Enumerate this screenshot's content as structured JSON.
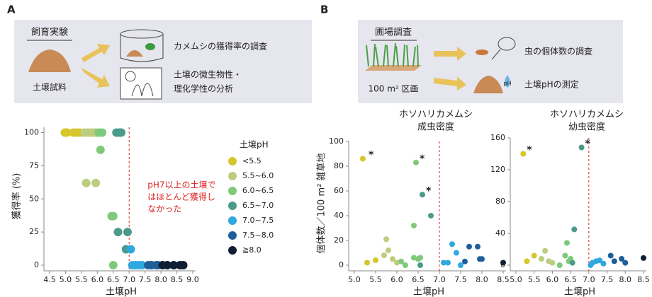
{
  "panel_a": {
    "label": "A",
    "title": "飼育実験",
    "sample": "土壌試料",
    "steps": [
      [
        "カメムシの獲得率の調査"
      ],
      [
        "土壌の微生物性・",
        "理化学性の分析"
      ]
    ]
  },
  "panel_b": {
    "label": "B",
    "title": "圃場調査",
    "plot": "100 m² 区画",
    "drop_label": "pH",
    "steps": [
      "虫の個体数の調査",
      "土壌pHの測定"
    ]
  },
  "chart_data": [
    {
      "type": "scatter",
      "xlabel": "土壌pH",
      "ylabel": "獲得率 (%)",
      "xlim": [
        4.5,
        9.0
      ],
      "xticks": [
        4.5,
        {
          "value": 5,
          "label": "5.0"
        },
        5.5,
        {
          "value": 6,
          "label": "6.0"
        },
        6.5,
        {
          "value": 7,
          "label": "7.0"
        },
        7.5,
        {
          "value": 8,
          "label": "8.0"
        },
        8.5,
        {
          "value": 9,
          "label": "9.0"
        }
      ],
      "ylim": [
        0,
        104
      ],
      "yticks": [
        0,
        25,
        50,
        75,
        100
      ],
      "threshold": 7.0,
      "note": [
        "pH7以上の土壌で",
        "はほとんど獲得し",
        "なかった"
      ],
      "legend": "right",
      "legend_title": "土壌pH",
      "series": [
        {
          "name": "<5.5",
          "color": "#d6c62c",
          "x": [
            4.98,
            5.05,
            5.25,
            5.35,
            5.45
          ],
          "y": [
            100,
            100,
            100,
            100,
            100
          ]
        },
        {
          "name": "5.5~6.0",
          "color": "#bccd80",
          "x": [
            5.6,
            5.7,
            5.8,
            5.9,
            5.95,
            5.65,
            5.95
          ],
          "y": [
            100,
            100,
            100,
            100,
            100,
            62,
            62
          ]
        },
        {
          "name": "6.0~6.5",
          "color": "#7fc97a",
          "x": [
            6.05,
            6.15,
            6.1,
            6.45,
            6.5,
            6.5
          ],
          "y": [
            100,
            100,
            87,
            37,
            37,
            0
          ]
        },
        {
          "name": "6.5~7.0",
          "color": "#4b9a8a",
          "x": [
            6.6,
            6.7,
            6.75,
            6.65,
            6.95,
            6.9
          ],
          "y": [
            100,
            100,
            100,
            25,
            25,
            12
          ]
        },
        {
          "name": "7.0~7.5",
          "color": "#2ea8de",
          "x": [
            7.05,
            7.1,
            7.2,
            7.3,
            7.4
          ],
          "y": [
            12,
            0,
            0,
            0,
            0
          ]
        },
        {
          "name": "7.5~8.0",
          "color": "#1e5f9a",
          "x": [
            7.6,
            7.7,
            7.85,
            7.9
          ],
          "y": [
            0,
            0,
            0,
            0
          ]
        },
        {
          "name": "≧8.0",
          "color": "#101e33",
          "x": [
            8.05,
            8.2,
            8.4,
            8.6,
            8.7
          ],
          "y": [
            0,
            0,
            0,
            0,
            0
          ]
        }
      ]
    },
    {
      "type": "scatter",
      "title": [
        "ホソハリカメムシ",
        "成虫密度"
      ],
      "xlabel": "土壌pH",
      "ylabel": "個体数／100 m² 雑草地",
      "xlim": [
        5.0,
        8.5
      ],
      "xticks": [
        {
          "value": 5,
          "label": "5.0"
        },
        5.5,
        {
          "value": 6,
          "label": "6.0"
        },
        6.5,
        {
          "value": 7,
          "label": "7.0"
        },
        7.5,
        {
          "value": 8,
          "label": "8.0"
        },
        8.5
      ],
      "ylim": [
        0,
        100
      ],
      "yticks": [
        0,
        20,
        40,
        60,
        80,
        100
      ],
      "threshold": 7.0,
      "annotations": [
        {
          "x": 5.25,
          "y": 86,
          "text": "*"
        },
        {
          "x": 6.45,
          "y": 83,
          "text": "*"
        },
        {
          "x": 6.6,
          "y": 57,
          "text": "*"
        }
      ],
      "series": [
        {
          "color": "#d6c62c",
          "x": [
            5.2,
            5.3,
            5.5
          ],
          "y": [
            86,
            2,
            4
          ]
        },
        {
          "color": "#bccd80",
          "x": [
            5.7,
            5.8,
            5.75,
            5.9,
            6.0
          ],
          "y": [
            8,
            12,
            21,
            5,
            2
          ]
        },
        {
          "color": "#7fc97a",
          "x": [
            6.1,
            6.2,
            6.4,
            6.45,
            6.4,
            6.5,
            6.55
          ],
          "y": [
            3,
            0,
            32,
            83,
            6,
            5,
            6
          ]
        },
        {
          "color": "#4b9a8a",
          "x": [
            6.6,
            6.8,
            6.55
          ],
          "y": [
            57,
            40,
            0
          ]
        },
        {
          "color": "#2ea8de",
          "x": [
            7.1,
            7.2,
            7.3,
            7.4,
            7.5
          ],
          "y": [
            2,
            2,
            17,
            10,
            0
          ]
        },
        {
          "color": "#1e5f9a",
          "x": [
            7.7,
            7.9,
            7.6,
            8.0,
            7.95
          ],
          "y": [
            15,
            15,
            3,
            5,
            5
          ]
        },
        {
          "color": "#101e33",
          "x": [
            8.5
          ],
          "y": [
            2
          ]
        }
      ]
    },
    {
      "type": "scatter",
      "title": [
        "ホソハリカメムシ",
        "幼虫密度"
      ],
      "xlabel": "土壌pH",
      "xlim": [
        5.0,
        8.5
      ],
      "xticks": [
        {
          "value": 5,
          "label": "5.0"
        },
        5.5,
        {
          "value": 6,
          "label": "6.0"
        },
        6.5,
        {
          "value": 7,
          "label": "7.0"
        },
        7.5,
        {
          "value": 8,
          "label": "8.0"
        },
        8.5
      ],
      "ylim": [
        0,
        160
      ],
      "yticks": [
        0,
        40,
        80,
        120,
        160
      ],
      "threshold": 7.0,
      "annotations": [
        {
          "x": 5.2,
          "y": 140,
          "text": "*"
        },
        {
          "x": 6.8,
          "y": 148,
          "text": "*"
        }
      ],
      "series": [
        {
          "color": "#d6c62c",
          "x": [
            5.2,
            5.3,
            5.5
          ],
          "y": [
            140,
            5,
            12
          ]
        },
        {
          "color": "#bccd80",
          "x": [
            5.7,
            5.8,
            5.9,
            6.0
          ],
          "y": [
            8,
            18,
            5,
            3
          ]
        },
        {
          "color": "#7fc97a",
          "x": [
            6.2,
            6.35,
            6.4,
            6.45,
            6.5
          ],
          "y": [
            0,
            12,
            28,
            5,
            8
          ]
        },
        {
          "color": "#4b9a8a",
          "x": [
            6.6,
            6.8,
            6.55
          ],
          "y": [
            45,
            148,
            3
          ]
        },
        {
          "color": "#2ea8de",
          "x": [
            7.05,
            7.1,
            7.2,
            7.3,
            7.4
          ],
          "y": [
            0,
            3,
            5,
            6,
            2
          ]
        },
        {
          "color": "#1e5f9a",
          "x": [
            7.6,
            7.7,
            7.9,
            8.0
          ],
          "y": [
            12,
            5,
            8,
            3
          ]
        },
        {
          "color": "#101e33",
          "x": [
            8.5
          ],
          "y": [
            9
          ]
        }
      ]
    }
  ]
}
